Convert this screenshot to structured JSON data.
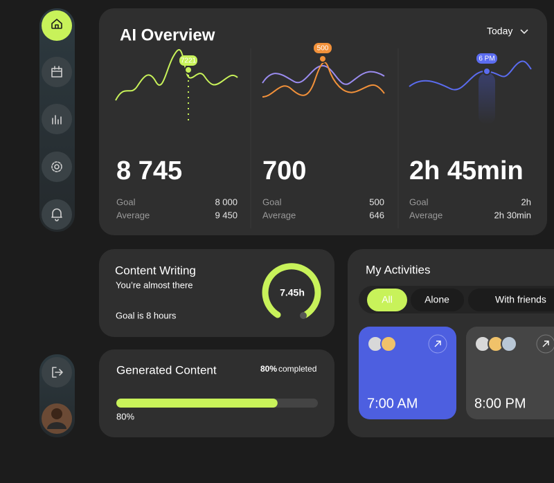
{
  "overview": {
    "title": "AI Overview",
    "period": "Today",
    "metrics": [
      {
        "badge": "7221",
        "value": "8 745",
        "goal_label": "Goal",
        "goal": "8 000",
        "average_label": "Average",
        "average": "9 450"
      },
      {
        "badge": "500",
        "value": "700",
        "goal_label": "Goal",
        "goal": "500",
        "average_label": "Average",
        "average": "646"
      },
      {
        "badge": "6 PM",
        "value": "2h 45min",
        "goal_label": "Goal",
        "goal": "2h",
        "average_label": "Average",
        "average": "2h 30min"
      }
    ]
  },
  "content_writing": {
    "title": "Content Writing",
    "subtitle": "You’re almost there",
    "goal": "Goal is 8 hours",
    "time": "7.45h"
  },
  "generated_content": {
    "title": "Generated Content",
    "percent": 80,
    "percent_label": "80%",
    "status": "completed"
  },
  "activities": {
    "title": "My Activities",
    "tabs": [
      "All",
      "Alone",
      "With friends"
    ],
    "cards": [
      {
        "time": "7:00 AM"
      },
      {
        "time": "8:00 PM"
      }
    ]
  }
}
